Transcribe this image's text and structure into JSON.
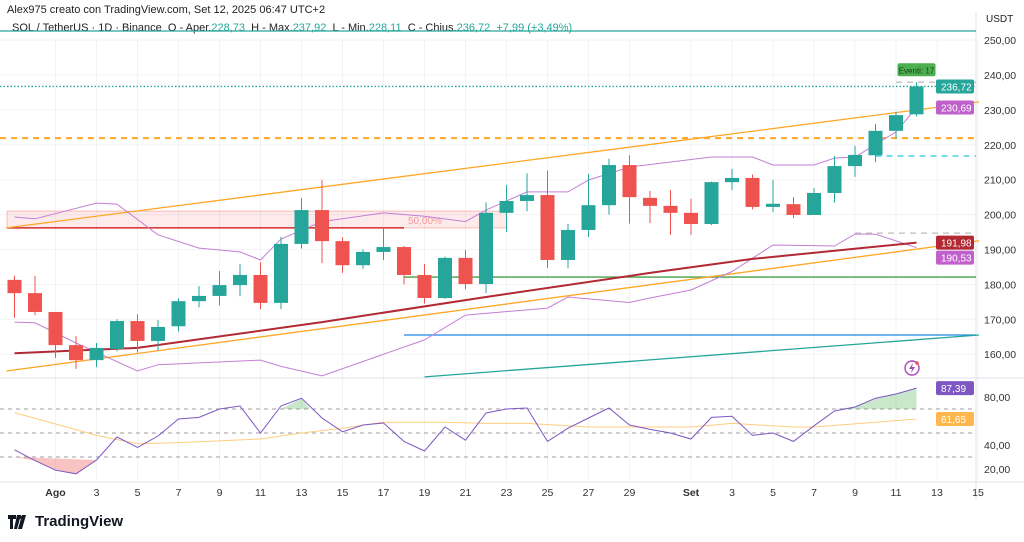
{
  "header": {
    "credit": "Alex975 creato con TradingView.com, Set 12, 2025 06:47 UTC+2",
    "symbol": "SOL / TetherUS · 1D · Binance",
    "open_label": "O - Aper.",
    "open": "228,73",
    "high_label": "H - Max.",
    "high": "237,92",
    "low_label": "L - Min.",
    "low": "228,11",
    "close_label": "C - Chius.",
    "close": "236,72",
    "change": "+7,99 (+3,49%)"
  },
  "price_axis": {
    "unit": "USDT",
    "ticks": [
      "250,00",
      "240,00",
      "230,00",
      "220,00",
      "210,00",
      "200,00",
      "190,00",
      "180,00",
      "170,00",
      "160,00"
    ],
    "tick_values": [
      250,
      240,
      230,
      220,
      210,
      200,
      190,
      180,
      170,
      160
    ]
  },
  "rsi_axis": {
    "ticks": [
      "80,00",
      "40,00",
      "20,00"
    ],
    "tick_values": [
      80,
      40,
      20
    ]
  },
  "time_axis": {
    "labels": [
      {
        "text": "Ago",
        "date": "2025-08-01",
        "bold": true
      },
      {
        "text": "3",
        "date": "2025-08-03"
      },
      {
        "text": "5",
        "date": "2025-08-05"
      },
      {
        "text": "7",
        "date": "2025-08-07"
      },
      {
        "text": "9",
        "date": "2025-08-09"
      },
      {
        "text": "11",
        "date": "2025-08-11"
      },
      {
        "text": "13",
        "date": "2025-08-13"
      },
      {
        "text": "15",
        "date": "2025-08-15"
      },
      {
        "text": "17",
        "date": "2025-08-17"
      },
      {
        "text": "19",
        "date": "2025-08-19"
      },
      {
        "text": "21",
        "date": "2025-08-21"
      },
      {
        "text": "23",
        "date": "2025-08-23"
      },
      {
        "text": "25",
        "date": "2025-08-25"
      },
      {
        "text": "27",
        "date": "2025-08-27"
      },
      {
        "text": "29",
        "date": "2025-08-29"
      },
      {
        "text": "Set",
        "date": "2025-09-01",
        "bold": true
      },
      {
        "text": "3",
        "date": "2025-09-03"
      },
      {
        "text": "5",
        "date": "2025-09-05"
      },
      {
        "text": "7",
        "date": "2025-09-07"
      },
      {
        "text": "9",
        "date": "2025-09-09"
      },
      {
        "text": "11",
        "date": "2025-09-11"
      },
      {
        "text": "13",
        "date": "2025-09-13"
      },
      {
        "text": "15",
        "date": "2025-09-15"
      }
    ]
  },
  "price_tags": [
    {
      "text": "236,72",
      "value": 236.72,
      "color": "#26a69a"
    },
    {
      "text": "230,69",
      "value": 230.69,
      "color": "#c061cb"
    },
    {
      "text": "191,98",
      "value": 191.98,
      "color": "#b22833"
    },
    {
      "text": "190,53",
      "value": 190.53,
      "color": "#c061cb"
    }
  ],
  "rsi_tags": [
    {
      "text": "87,39",
      "value": 87.39,
      "color": "#7e57c2"
    },
    {
      "text": "61,65",
      "value": 61.65,
      "color": "#ffb74d",
      "text_color": "#333"
    }
  ],
  "event_label": "Eventi: 17",
  "fib_label": "50,00%",
  "colors": {
    "up": "#26a69a",
    "down": "#ef5350",
    "ma": "#b22833",
    "bands": "#c47fd5",
    "channel": "#ffa726",
    "rsi": "#7e57c2",
    "rsi_ma": "#ffcc80"
  },
  "logo": {
    "text": "TradingView"
  },
  "chart_data": {
    "type": "candlestick",
    "candles": [
      {
        "date": "2025-07-30",
        "o": 181.3,
        "h": 182.5,
        "l": 170.4,
        "c": 177.5
      },
      {
        "date": "2025-07-31",
        "o": 177.5,
        "h": 182.4,
        "l": 171.2,
        "c": 172.1
      },
      {
        "date": "2025-08-01",
        "o": 172.1,
        "h": 172.1,
        "l": 158.9,
        "c": 162.6
      },
      {
        "date": "2025-08-02",
        "o": 162.6,
        "h": 165.2,
        "l": 155.8,
        "c": 158.3
      },
      {
        "date": "2025-08-03",
        "o": 158.3,
        "h": 163.2,
        "l": 156.3,
        "c": 161.8
      },
      {
        "date": "2025-08-04",
        "o": 161.5,
        "h": 170.0,
        "l": 160.8,
        "c": 169.5
      },
      {
        "date": "2025-08-05",
        "o": 169.5,
        "h": 171.5,
        "l": 160.5,
        "c": 163.8
      },
      {
        "date": "2025-08-06",
        "o": 163.8,
        "h": 169.8,
        "l": 161.0,
        "c": 167.8
      },
      {
        "date": "2025-08-07",
        "o": 168.0,
        "h": 176.0,
        "l": 166.5,
        "c": 175.2
      },
      {
        "date": "2025-08-08",
        "o": 175.2,
        "h": 179.5,
        "l": 173.4,
        "c": 176.7
      },
      {
        "date": "2025-08-09",
        "o": 176.7,
        "h": 183.8,
        "l": 174.0,
        "c": 179.8
      },
      {
        "date": "2025-08-10",
        "o": 179.8,
        "h": 185.8,
        "l": 176.6,
        "c": 182.7
      },
      {
        "date": "2025-08-11",
        "o": 182.7,
        "h": 186.3,
        "l": 172.9,
        "c": 174.7
      },
      {
        "date": "2025-08-12",
        "o": 174.7,
        "h": 193.6,
        "l": 172.9,
        "c": 191.6
      },
      {
        "date": "2025-08-13",
        "o": 191.6,
        "h": 204.8,
        "l": 190.3,
        "c": 201.3
      },
      {
        "date": "2025-08-14",
        "o": 201.3,
        "h": 209.9,
        "l": 186.1,
        "c": 192.4
      },
      {
        "date": "2025-08-15",
        "o": 192.4,
        "h": 193.5,
        "l": 183.3,
        "c": 185.5
      },
      {
        "date": "2025-08-16",
        "o": 185.5,
        "h": 190.0,
        "l": 184.5,
        "c": 189.3
      },
      {
        "date": "2025-08-17",
        "o": 189.3,
        "h": 196.2,
        "l": 187.0,
        "c": 190.7
      },
      {
        "date": "2025-08-18",
        "o": 190.7,
        "h": 191.0,
        "l": 180.0,
        "c": 182.7
      },
      {
        "date": "2025-08-19",
        "o": 182.7,
        "h": 185.8,
        "l": 174.5,
        "c": 176.1
      },
      {
        "date": "2025-08-20",
        "o": 176.1,
        "h": 188.0,
        "l": 175.8,
        "c": 187.6
      },
      {
        "date": "2025-08-21",
        "o": 187.6,
        "h": 189.9,
        "l": 178.6,
        "c": 180.1
      },
      {
        "date": "2025-08-22",
        "o": 180.1,
        "h": 203.5,
        "l": 177.5,
        "c": 200.5
      },
      {
        "date": "2025-08-23",
        "o": 200.5,
        "h": 208.5,
        "l": 195.0,
        "c": 203.9
      },
      {
        "date": "2025-08-24",
        "o": 203.9,
        "h": 211.9,
        "l": 201.0,
        "c": 205.6
      },
      {
        "date": "2025-08-25",
        "o": 205.6,
        "h": 212.6,
        "l": 184.7,
        "c": 187.0
      },
      {
        "date": "2025-08-26",
        "o": 187.0,
        "h": 197.3,
        "l": 184.6,
        "c": 195.6
      },
      {
        "date": "2025-08-27",
        "o": 195.6,
        "h": 211.7,
        "l": 193.6,
        "c": 202.7
      },
      {
        "date": "2025-08-28",
        "o": 202.7,
        "h": 216.0,
        "l": 200.0,
        "c": 214.2
      },
      {
        "date": "2025-08-29",
        "o": 214.2,
        "h": 217.0,
        "l": 197.4,
        "c": 205.0
      },
      {
        "date": "2025-08-30",
        "o": 204.8,
        "h": 206.8,
        "l": 197.6,
        "c": 202.5
      },
      {
        "date": "2025-08-31",
        "o": 202.5,
        "h": 207.0,
        "l": 194.2,
        "c": 200.5
      },
      {
        "date": "2025-09-01",
        "o": 200.5,
        "h": 204.5,
        "l": 194.2,
        "c": 197.3
      },
      {
        "date": "2025-09-02",
        "o": 197.3,
        "h": 209.5,
        "l": 197.0,
        "c": 209.3
      },
      {
        "date": "2025-09-03",
        "o": 209.3,
        "h": 213.1,
        "l": 207.0,
        "c": 210.5
      },
      {
        "date": "2025-09-04",
        "o": 210.5,
        "h": 211.5,
        "l": 201.5,
        "c": 202.2
      },
      {
        "date": "2025-09-05",
        "o": 202.2,
        "h": 209.9,
        "l": 200.7,
        "c": 203.1
      },
      {
        "date": "2025-09-06",
        "o": 203.0,
        "h": 205.0,
        "l": 199.0,
        "c": 199.9
      },
      {
        "date": "2025-09-07",
        "o": 199.9,
        "h": 207.6,
        "l": 199.9,
        "c": 206.2
      },
      {
        "date": "2025-09-08",
        "o": 206.2,
        "h": 216.8,
        "l": 203.4,
        "c": 213.9
      },
      {
        "date": "2025-09-09",
        "o": 213.9,
        "h": 219.7,
        "l": 210.8,
        "c": 217.1
      },
      {
        "date": "2025-09-10",
        "o": 217.0,
        "h": 226.0,
        "l": 215.0,
        "c": 224.0
      },
      {
        "date": "2025-09-11",
        "o": 224.0,
        "h": 229.5,
        "l": 221.8,
        "c": 228.5
      },
      {
        "date": "2025-09-12",
        "o": 228.73,
        "h": 237.92,
        "l": 228.11,
        "c": 236.72
      }
    ],
    "moving_average": [
      [
        "2025-07-30",
        160.3
      ],
      [
        "2025-08-05",
        161.8
      ],
      [
        "2025-08-14",
        169.2
      ],
      [
        "2025-08-22",
        176.4
      ],
      [
        "2025-08-30",
        183.3
      ],
      [
        "2025-09-04",
        187.3
      ],
      [
        "2025-09-12",
        191.98
      ]
    ],
    "band_upper": [
      [
        "2025-07-30",
        199.3
      ],
      [
        "2025-07-31",
        198.8
      ],
      [
        "2025-08-03",
        203.3
      ],
      [
        "2025-08-04",
        203.0
      ],
      [
        "2025-08-06",
        194.2
      ],
      [
        "2025-08-08",
        190.4
      ],
      [
        "2025-08-10",
        189.3
      ],
      [
        "2025-08-11",
        187.0
      ],
      [
        "2025-08-12",
        193.0
      ],
      [
        "2025-08-14",
        198.0
      ],
      [
        "2025-08-17",
        200.5
      ],
      [
        "2025-08-19",
        199.5
      ],
      [
        "2025-08-21",
        198.0
      ],
      [
        "2025-08-22",
        201.3
      ],
      [
        "2025-08-24",
        206.5
      ],
      [
        "2025-08-26",
        206.5
      ],
      [
        "2025-08-27",
        209.9
      ],
      [
        "2025-08-29",
        213.6
      ],
      [
        "2025-09-02",
        216.5
      ],
      [
        "2025-09-04",
        216.5
      ],
      [
        "2025-09-05",
        214.2
      ],
      [
        "2025-09-07",
        214.2
      ],
      [
        "2025-09-08",
        216.2
      ],
      [
        "2025-09-09",
        216.5
      ],
      [
        "2025-09-11",
        223.7
      ],
      [
        "2025-09-12",
        230.69
      ]
    ],
    "band_lower": [
      [
        "2025-07-30",
        169.2
      ],
      [
        "2025-07-31",
        169.0
      ],
      [
        "2025-08-02",
        163.2
      ],
      [
        "2025-08-05",
        155.2
      ],
      [
        "2025-08-06",
        157.0
      ],
      [
        "2025-08-11",
        158.3
      ],
      [
        "2025-08-12",
        156.5
      ],
      [
        "2025-08-14",
        153.8
      ],
      [
        "2025-08-19",
        164.1
      ],
      [
        "2025-08-21",
        171.2
      ],
      [
        "2025-08-25",
        173.2
      ],
      [
        "2025-08-26",
        176.4
      ],
      [
        "2025-08-29",
        174.8
      ],
      [
        "2025-08-30",
        176.1
      ],
      [
        "2025-09-01",
        178.4
      ],
      [
        "2025-09-03",
        183.7
      ],
      [
        "2025-09-05",
        191.3
      ],
      [
        "2025-09-08",
        191.0
      ],
      [
        "2025-09-09",
        194.4
      ],
      [
        "2025-09-10",
        194.4
      ],
      [
        "2025-09-12",
        190.53
      ]
    ],
    "channel_upper": [
      [
        "2025-07-30",
        196.5
      ],
      [
        "2025-09-15",
        232.3
      ]
    ],
    "channel_lower": [
      [
        "2025-07-30",
        155.5
      ],
      [
        "2025-09-15",
        192.5
      ]
    ],
    "rising_line": [
      [
        "2025-08-19",
        153.5
      ],
      [
        "2025-09-15",
        165.5
      ]
    ],
    "levels": [
      {
        "value": 252.6,
        "from": "2025-07-30",
        "color": "#26a69a",
        "style": "solid"
      },
      {
        "value": 236.72,
        "from": "2025-07-30",
        "color": "#26a69a",
        "style": "dotted"
      },
      {
        "value": 237.92,
        "from": "2025-09-11",
        "color": "#bbbbbb",
        "style": "dashed"
      },
      {
        "value": 221.9,
        "from": "2025-07-30",
        "color": "#ffa726",
        "style": "dashed"
      },
      {
        "value": 216.8,
        "from": "2025-09-10",
        "color": "#26c6da",
        "style": "dashed"
      },
      {
        "value": 194.7,
        "from": "2025-09-09",
        "color": "#bbbbbb",
        "style": "dashed"
      },
      {
        "value": 182.1,
        "from": "2025-08-18",
        "color": "#43a047",
        "style": "solid"
      },
      {
        "value": 165.5,
        "from": "2025-08-18",
        "color": "#1e88e5",
        "style": "solid"
      }
    ],
    "fib_zone": {
      "top": 201.0,
      "bottom": 196.2,
      "from": "2025-07-30",
      "to": "2025-08-23",
      "line": 196.2,
      "line_to": "2025-08-18"
    },
    "rsi": [
      36,
      27,
      19,
      16,
      27.5,
      46.7,
      38,
      47.5,
      61.7,
      63,
      70,
      72.5,
      50,
      72.5,
      79,
      62.5,
      51,
      56.7,
      58.3,
      43,
      35,
      55,
      44,
      66.7,
      70,
      70.8,
      43,
      54,
      62.5,
      70.8,
      56.7,
      53,
      50,
      45,
      63,
      64,
      48,
      50,
      43,
      56,
      68.3,
      71.7,
      79,
      82.5,
      87.39
    ],
    "rsi_ma": [
      [
        "2025-07-30",
        67
      ],
      [
        "2025-08-03",
        48
      ],
      [
        "2025-08-05",
        41
      ],
      [
        "2025-08-07",
        42
      ],
      [
        "2025-08-11",
        45
      ],
      [
        "2025-08-13",
        50
      ],
      [
        "2025-08-15",
        54
      ],
      [
        "2025-08-17",
        59
      ],
      [
        "2025-08-20",
        59
      ],
      [
        "2025-08-22",
        58
      ],
      [
        "2025-08-24",
        58
      ],
      [
        "2025-08-27",
        55
      ],
      [
        "2025-09-01",
        55
      ],
      [
        "2025-09-03",
        58
      ],
      [
        "2025-09-06",
        55
      ],
      [
        "2025-09-07",
        55
      ],
      [
        "2025-09-12",
        61.65
      ]
    ],
    "rsi_levels": [
      70,
      50,
      30
    ]
  }
}
